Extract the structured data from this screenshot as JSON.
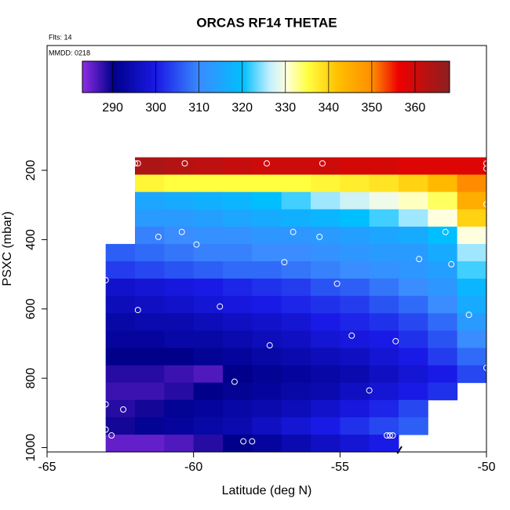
{
  "chart_data": {
    "type": "heatmap",
    "title": "ORCAS RF14 THETAE",
    "annotations": [
      "Flts: 14",
      "MMDD: 0218"
    ],
    "x_label": "Latitude (deg N)",
    "y_label": "PSXC (mbar)",
    "xlim": [
      -65,
      -50
    ],
    "xticks": [
      -65,
      -60,
      -55,
      -50
    ],
    "ylim": [
      1012.5,
      -160
    ],
    "yticks": [
      200,
      400,
      600,
      800,
      1000
    ],
    "x_edges": [
      -63,
      -62,
      -61,
      -60,
      -59,
      -58,
      -57,
      -56,
      -55,
      -54,
      -53,
      -52,
      -51,
      -50
    ],
    "y_edges": [
      162.5,
      212.5,
      262.5,
      312.5,
      362.5,
      412.5,
      462.5,
      512.5,
      562.5,
      612.5,
      662.5,
      712.5,
      762.5,
      812.5,
      862.5,
      912.5,
      962.5,
      1012.5
    ],
    "values": [
      [
        null,
        364,
        363,
        362,
        361,
        360,
        360,
        360,
        359,
        359,
        358,
        358,
        358
      ],
      [
        null,
        336,
        335,
        335,
        335,
        335,
        335,
        336,
        337,
        338,
        340,
        343,
        350
      ],
      [
        null,
        315,
        316,
        317,
        318,
        320,
        322,
        325,
        327,
        329,
        331,
        334,
        345
      ],
      [
        null,
        313,
        313,
        314,
        315,
        316,
        317,
        318,
        320,
        322,
        325,
        330,
        340
      ],
      [
        null,
        309,
        310,
        311,
        311,
        312,
        312,
        313,
        314,
        315,
        316,
        320,
        330
      ],
      [
        306,
        307,
        308,
        309,
        309,
        310,
        310,
        311,
        312,
        313,
        313,
        316,
        325
      ],
      [
        303,
        304,
        305,
        306,
        307,
        307,
        308,
        309,
        310,
        311,
        312,
        314,
        322
      ],
      [
        297,
        298,
        299,
        300,
        301,
        302,
        303,
        305,
        306,
        308,
        310,
        312,
        318
      ],
      [
        295,
        296,
        297,
        298,
        299,
        300,
        301,
        302,
        303,
        305,
        307,
        310,
        316
      ],
      [
        293,
        294,
        294,
        295,
        296,
        297,
        298,
        300,
        301,
        302,
        304,
        307,
        313
      ],
      [
        292,
        292,
        293,
        293,
        294,
        295,
        296,
        298,
        299,
        300,
        302,
        305,
        310
      ],
      [
        290,
        290,
        290,
        291,
        292,
        293,
        294,
        295,
        296,
        298,
        300,
        303,
        307
      ],
      [
        288,
        288,
        287,
        286,
        290,
        291,
        292,
        293,
        294,
        296,
        298,
        300,
        304
      ],
      [
        287,
        287,
        288,
        290,
        291,
        292,
        293,
        294,
        296,
        298,
        300,
        302,
        null
      ],
      [
        288,
        289,
        291,
        292,
        293,
        294,
        295,
        297,
        299,
        301,
        304,
        null,
        null
      ],
      [
        289,
        291,
        292,
        293,
        294,
        296,
        298,
        300,
        302,
        304,
        306,
        null,
        null
      ],
      [
        285,
        285,
        286,
        288,
        290,
        292,
        294,
        296,
        298,
        300,
        null,
        null,
        null
      ]
    ],
    "points": {
      "x": [
        -62,
        -61.9,
        -60.3,
        -57.5,
        -55.6,
        -50,
        -50,
        -62.5,
        -50,
        -61.2,
        -60.4,
        -59.9,
        -56.6,
        -55.7,
        -51.4,
        -52.3,
        -51.2,
        -56.9,
        -55.1,
        -63,
        -61.9,
        -59.1,
        -57.4,
        -54.6,
        -53.1,
        -50.6,
        -50,
        -58.6,
        -54,
        -63,
        -62.4,
        -63,
        -62.8,
        -58.3,
        -58,
        -53.4,
        -53.3,
        -53.2
      ],
      "y": [
        180,
        180,
        180,
        180,
        180,
        180,
        195,
        290,
        298,
        392,
        378,
        414,
        378,
        392,
        378,
        456,
        471,
        465,
        527,
        517,
        603,
        593,
        705,
        677,
        693,
        617,
        770,
        810,
        835,
        875,
        890,
        948,
        965,
        982,
        982,
        965,
        965,
        965
      ]
    },
    "colorbar": {
      "lim": [
        283,
        368
      ],
      "ticks": [
        290,
        300,
        310,
        320,
        330,
        340,
        350,
        360
      ],
      "stops": [
        {
          "value": 283,
          "color": "#8a2be2"
        },
        {
          "value": 290,
          "color": "#00008b"
        },
        {
          "value": 300,
          "color": "#1a1ae6"
        },
        {
          "value": 310,
          "color": "#3a8cff"
        },
        {
          "value": 320,
          "color": "#00bfff"
        },
        {
          "value": 326,
          "color": "#bfeeff"
        },
        {
          "value": 330,
          "color": "#ffffe0"
        },
        {
          "value": 335,
          "color": "#ffff40"
        },
        {
          "value": 342,
          "color": "#ffc000"
        },
        {
          "value": 350,
          "color": "#ff8c00"
        },
        {
          "value": 356,
          "color": "#ee0000"
        },
        {
          "value": 368,
          "color": "#8b2020"
        }
      ]
    }
  }
}
